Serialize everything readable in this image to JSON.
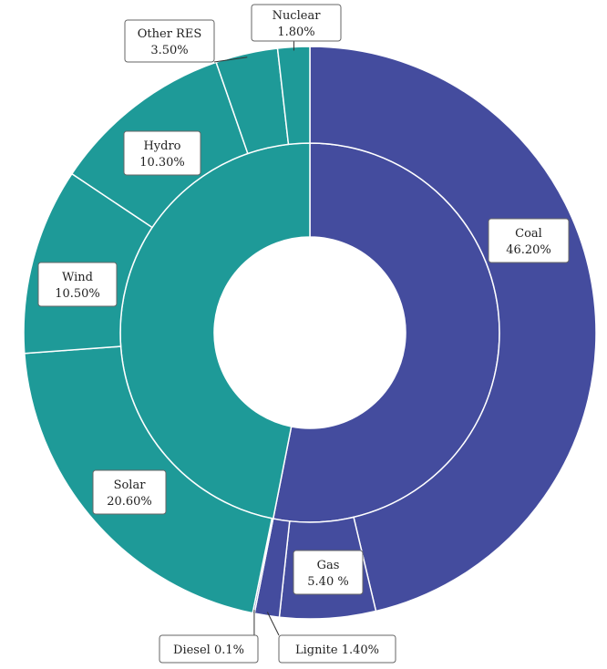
{
  "chart_data": {
    "type": "donut",
    "title": "",
    "rings": [
      {
        "name": "",
        "slices": [
          {
            "label": "",
            "value": 53.1,
            "color": "#444c9e"
          },
          {
            "label": "",
            "value": 46.9,
            "color": "#1e9a98"
          }
        ]
      },
      {
        "name": "",
        "slices": [
          {
            "label": "Coal",
            "value": "46.20%",
            "number": 46.2,
            "color": "#444c9e"
          },
          {
            "label": "Gas",
            "value": "5.40 %",
            "number": 5.4,
            "color": "#444c9e"
          },
          {
            "label": "Lignite",
            "value": "1.40%",
            "number": 1.4,
            "color": "#444c9e"
          },
          {
            "label": "Diesel",
            "value": "0.1%",
            "number": 0.1,
            "color": "#444c9e"
          },
          {
            "label": "Solar",
            "value": "20.60%",
            "number": 20.6,
            "color": "#1e9a98"
          },
          {
            "label": "Wind",
            "value": "10.50%",
            "number": 10.5,
            "color": "#1e9a98"
          },
          {
            "label": "Hydro",
            "value": "10.30%",
            "number": 10.3,
            "color": "#1e9a98"
          },
          {
            "label": "Other RES",
            "value": "3.50%",
            "number": 3.5,
            "color": "#1e9a98"
          },
          {
            "label": "Nuclear",
            "value": "1.80%",
            "number": 1.8,
            "color": "#1e9a98"
          }
        ]
      }
    ]
  }
}
